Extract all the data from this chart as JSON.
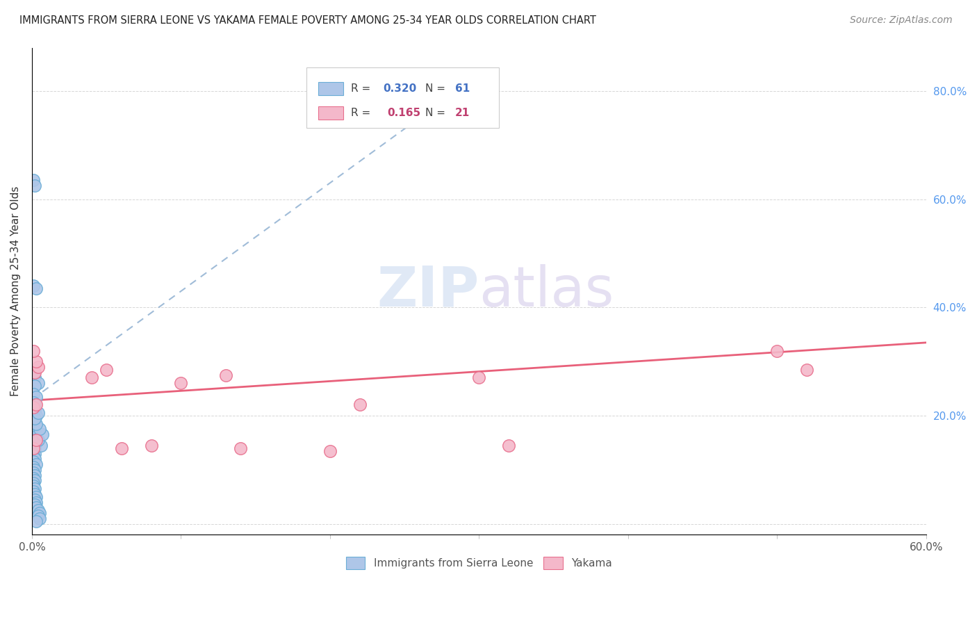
{
  "title": "IMMIGRANTS FROM SIERRA LEONE VS YAKAMA FEMALE POVERTY AMONG 25-34 YEAR OLDS CORRELATION CHART",
  "source": "Source: ZipAtlas.com",
  "ylabel": "Female Poverty Among 25-34 Year Olds",
  "xlim": [
    0.0,
    0.6
  ],
  "ylim": [
    -0.02,
    0.88
  ],
  "xticks": [
    0.0,
    0.1,
    0.2,
    0.3,
    0.4,
    0.5,
    0.6
  ],
  "xticklabels": [
    "0.0%",
    "",
    "",
    "",
    "",
    "",
    "60.0%"
  ],
  "yticks": [
    0.0,
    0.2,
    0.4,
    0.6,
    0.8
  ],
  "yticklabels": [
    "",
    "20.0%",
    "40.0%",
    "60.0%",
    "80.0%"
  ],
  "blue_color": "#aec6e8",
  "blue_edge_color": "#6baed6",
  "pink_color": "#f4b8ca",
  "pink_edge_color": "#e8708e",
  "blue_line_color": "#a0bcd8",
  "pink_line_color": "#e8607a",
  "R_blue": 0.32,
  "N_blue": 61,
  "R_pink": 0.165,
  "N_pink": 21,
  "blue_R_color": "#4472c4",
  "pink_R_color": "#c04070",
  "blue_scatter_x": [
    0.001,
    0.002,
    0.001,
    0.003,
    0.002,
    0.004,
    0.002,
    0.001,
    0.003,
    0.001,
    0.002,
    0.001,
    0.002,
    0.001,
    0.003,
    0.001,
    0.002,
    0.001,
    0.002,
    0.001,
    0.002,
    0.001,
    0.002,
    0.001,
    0.003,
    0.001,
    0.002,
    0.001,
    0.002,
    0.001,
    0.002,
    0.001,
    0.003,
    0.001,
    0.002,
    0.001,
    0.002,
    0.001,
    0.002,
    0.001,
    0.001,
    0.002,
    0.001,
    0.002,
    0.003,
    0.002,
    0.003,
    0.002,
    0.003,
    0.004,
    0.005,
    0.004,
    0.005,
    0.003,
    0.006,
    0.004,
    0.007,
    0.005,
    0.003,
    0.002,
    0.004
  ],
  "blue_scatter_y": [
    0.635,
    0.625,
    0.44,
    0.435,
    0.27,
    0.26,
    0.255,
    0.24,
    0.235,
    0.225,
    0.22,
    0.215,
    0.21,
    0.205,
    0.2,
    0.195,
    0.19,
    0.185,
    0.18,
    0.175,
    0.17,
    0.165,
    0.16,
    0.155,
    0.15,
    0.145,
    0.14,
    0.135,
    0.13,
    0.125,
    0.12,
    0.115,
    0.11,
    0.105,
    0.1,
    0.095,
    0.09,
    0.085,
    0.08,
    0.075,
    0.07,
    0.065,
    0.06,
    0.055,
    0.05,
    0.045,
    0.04,
    0.035,
    0.03,
    0.025,
    0.02,
    0.015,
    0.01,
    0.005,
    0.145,
    0.155,
    0.165,
    0.175,
    0.185,
    0.195,
    0.205
  ],
  "pink_scatter_x": [
    0.001,
    0.003,
    0.002,
    0.004,
    0.003,
    0.001,
    0.04,
    0.05,
    0.06,
    0.08,
    0.1,
    0.13,
    0.14,
    0.2,
    0.22,
    0.3,
    0.32,
    0.5,
    0.52,
    0.001,
    0.003
  ],
  "pink_scatter_y": [
    0.215,
    0.22,
    0.28,
    0.29,
    0.3,
    0.32,
    0.27,
    0.285,
    0.14,
    0.145,
    0.26,
    0.275,
    0.14,
    0.135,
    0.22,
    0.27,
    0.145,
    0.32,
    0.285,
    0.14,
    0.155
  ],
  "blue_trendline_x": [
    0.0,
    0.3
  ],
  "blue_trendline_y": [
    0.23,
    0.83
  ],
  "pink_trendline_x": [
    0.0,
    0.6
  ],
  "pink_trendline_y": [
    0.228,
    0.335
  ],
  "watermark_zip": "ZIP",
  "watermark_atlas": "atlas",
  "figsize": [
    14.06,
    8.92
  ],
  "dpi": 100
}
